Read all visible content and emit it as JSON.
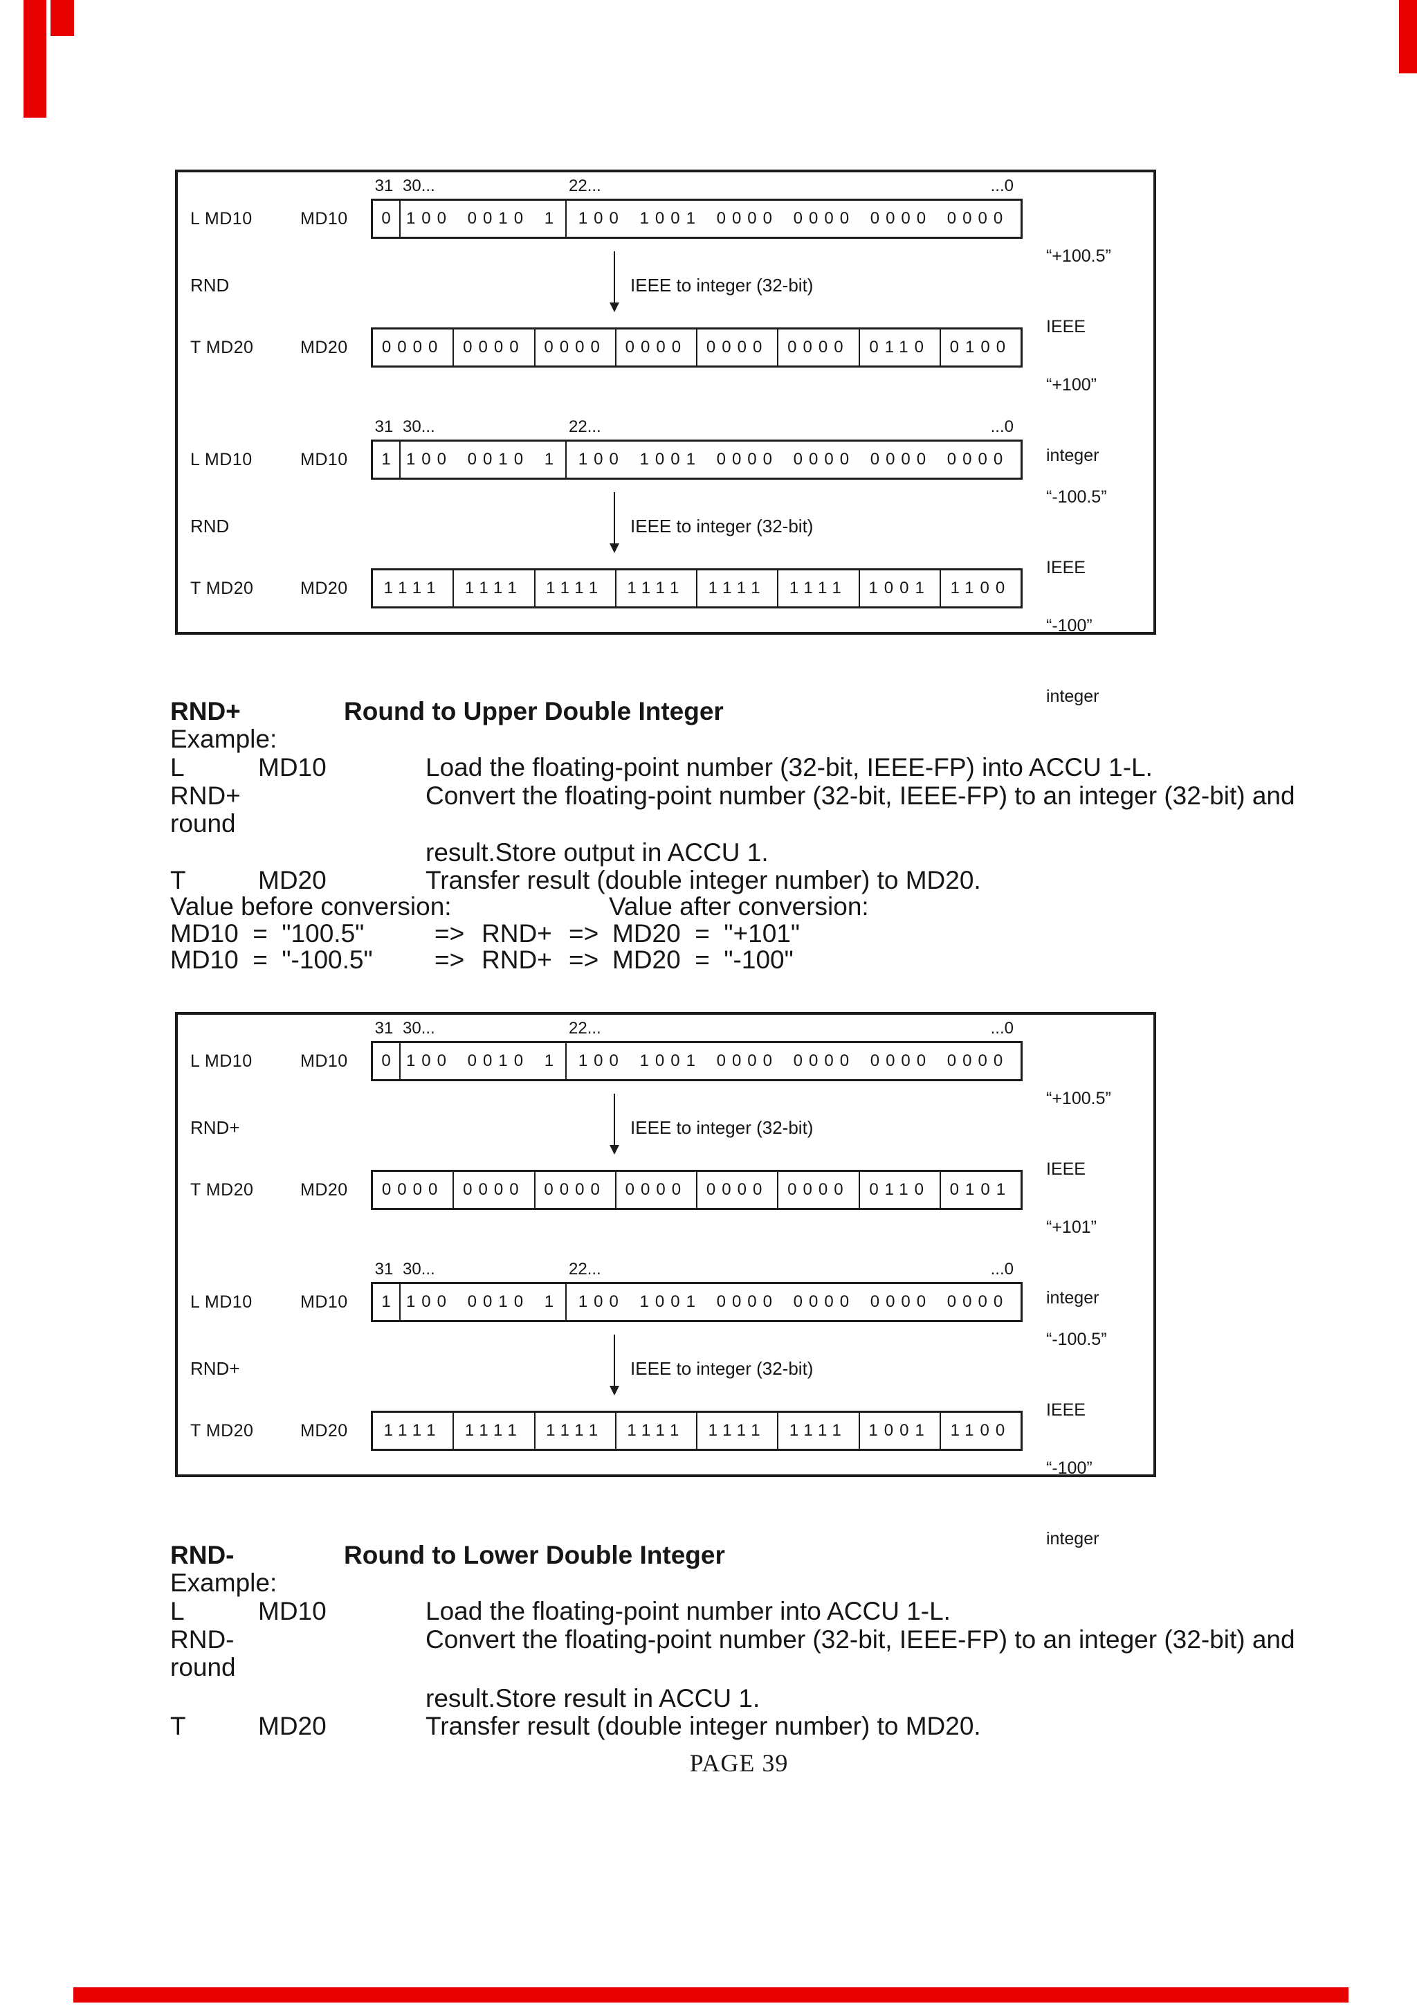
{
  "artifact_color": "#e60000",
  "footer": {
    "text": "PAGE 39"
  },
  "diagrams": [
    {
      "groups": [
        {
          "scale31": "31",
          "scale30": "30...",
          "scale22": "22...",
          "scale0": "...0",
          "load_op": "L MD10",
          "load_reg": "MD10",
          "sign": "0",
          "exponent": "100 0010 1",
          "mantissa": "100 1001 0000 0000 0000 0000",
          "load_value": "“+100.5”",
          "load_format": "IEEE",
          "op": "RND",
          "conv_text": "IEEE to integer (32-bit)",
          "store_op": "T MD20",
          "store_reg": "MD20",
          "store_cells": [
            "0000",
            "0000",
            "0000",
            "0000",
            "0000",
            "0000",
            "0110",
            "0100"
          ],
          "store_value": "“+100”",
          "store_format": "integer"
        },
        {
          "scale31": "31",
          "scale30": "30...",
          "scale22": "22...",
          "scale0": "...0",
          "load_op": "L MD10",
          "load_reg": "MD10",
          "sign": "1",
          "exponent": "100 0010 1",
          "mantissa": "100 1001 0000 0000 0000 0000",
          "load_value": "“-100.5”",
          "load_format": "IEEE",
          "op": "RND",
          "conv_text": "IEEE to integer (32-bit)",
          "store_op": "T MD20",
          "store_reg": "MD20",
          "store_cells": [
            "1111",
            "1111",
            "1111",
            "1111",
            "1111",
            "1111",
            "1001",
            "1100"
          ],
          "store_value": "“-100”",
          "store_format": "integer"
        }
      ]
    },
    {
      "groups": [
        {
          "scale31": "31",
          "scale30": "30...",
          "scale22": "22...",
          "scale0": "...0",
          "load_op": "L MD10",
          "load_reg": "MD10",
          "sign": "0",
          "exponent": "100 0010 1",
          "mantissa": "100 1001 0000 0000 0000 0000",
          "load_value": "“+100.5”",
          "load_format": "IEEE",
          "op": "RND+",
          "conv_text": "IEEE to integer (32-bit)",
          "store_op": "T MD20",
          "store_reg": "MD20",
          "store_cells": [
            "0000",
            "0000",
            "0000",
            "0000",
            "0000",
            "0000",
            "0110",
            "0101"
          ],
          "store_value": "“+101”",
          "store_format": "integer"
        },
        {
          "scale31": "31",
          "scale30": "30...",
          "scale22": "22...",
          "scale0": "...0",
          "load_op": "L MD10",
          "load_reg": "MD10",
          "sign": "1",
          "exponent": "100 0010 1",
          "mantissa": "100 1001 0000 0000 0000 0000",
          "load_value": "“-100.5”",
          "load_format": "IEEE",
          "op": "RND+",
          "conv_text": "IEEE to integer (32-bit)",
          "store_op": "T MD20",
          "store_reg": "MD20",
          "store_cells": [
            "1111",
            "1111",
            "1111",
            "1111",
            "1111",
            "1111",
            "1001",
            "1100"
          ],
          "store_value": "“-100”",
          "store_format": "integer"
        }
      ]
    }
  ],
  "sections": [
    {
      "op": "RND+",
      "title": "Round to Upper Double Integer",
      "example_label": "Example:",
      "rows": [
        {
          "c1": "L",
          "c2": "MD10",
          "c3": "Load the floating-point number (32-bit, IEEE-FP) into ACCU 1-L."
        },
        {
          "c1": "RND+",
          "c2": "",
          "c3": "Convert the floating-point number (32-bit, IEEE-FP) to an integer (32-bit) and"
        },
        {
          "c1": "round",
          "c2": "",
          "c3": ""
        },
        {
          "c1": "",
          "c2": "",
          "c3": "result.Store output in ACCU 1."
        },
        {
          "c1": "T",
          "c2": "MD20",
          "c3": "Transfer result (double integer number) to MD20."
        }
      ],
      "value_header_before": "Value before conversion:",
      "value_header_after": "Value after conversion:",
      "value_rows": [
        {
          "lhs": "MD10  =  \"100.5\"",
          "arrow1": "=>",
          "op": "RND+",
          "arrow2": "=>",
          "rhs": "MD20  =  \"+101\""
        },
        {
          "lhs": "MD10  =  \"-100.5\"",
          "arrow1": "=>",
          "op": "RND+",
          "arrow2": "=>",
          "rhs": "MD20  =  \"-100\""
        }
      ]
    },
    {
      "op": "RND-",
      "title": "Round to Lower Double Integer",
      "example_label": "Example:",
      "rows": [
        {
          "c1": "L",
          "c2": "MD10",
          "c3": "Load the floating-point number into ACCU 1-L."
        },
        {
          "c1": "RND-",
          "c2": "",
          "c3": "Convert the floating-point number (32-bit, IEEE-FP) to an integer (32-bit) and"
        },
        {
          "c1": "round",
          "c2": "",
          "c3": ""
        },
        {
          "c1": "",
          "c2": "",
          "c3": "result.Store result in ACCU 1."
        },
        {
          "c1": "T",
          "c2": "MD20",
          "c3": "Transfer result (double integer number) to MD20."
        }
      ]
    }
  ]
}
